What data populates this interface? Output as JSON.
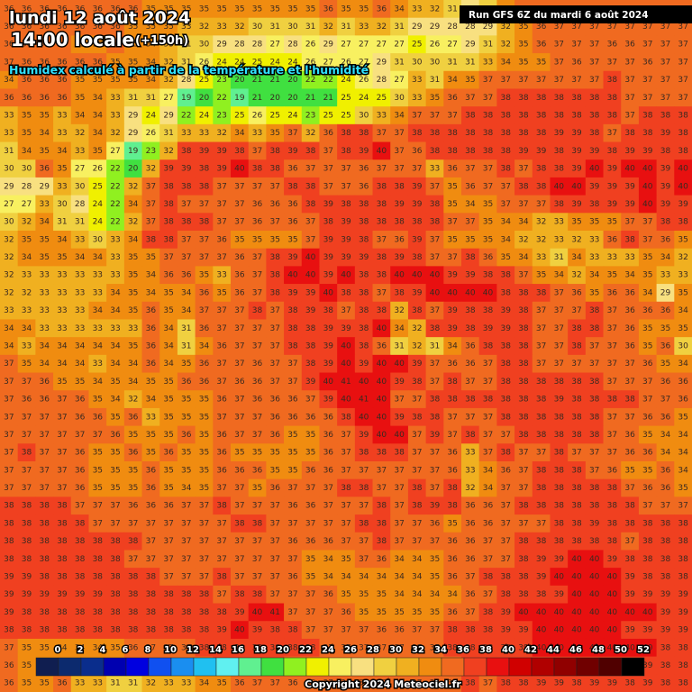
{
  "header": {
    "date": "lundi 12 août 2024",
    "time": "14:00 locale",
    "lead": "(+150h)",
    "subtitle": "Humidex calculé à partir de la température et l'humidité"
  },
  "run": "Run GFS 6Z du mardi 6 août 2024",
  "field": {
    "rows": [
      [
        36,
        36,
        36,
        36,
        36,
        36,
        36,
        36,
        35,
        35,
        35,
        35,
        35,
        35,
        35,
        35,
        35,
        35,
        36,
        35,
        35,
        36,
        34,
        33,
        32,
        31,
        29,
        31,
        34,
        36,
        36,
        36,
        36,
        37,
        37,
        37,
        37,
        37,
        37
      ],
      [
        36,
        36,
        36,
        36,
        36,
        36,
        36,
        35,
        35,
        35,
        33,
        32,
        33,
        32,
        30,
        31,
        30,
        31,
        32,
        31,
        33,
        32,
        31,
        29,
        29,
        28,
        28,
        29,
        32,
        35,
        36,
        37,
        37,
        37,
        37,
        37,
        37,
        37,
        37
      ],
      [
        36,
        36,
        36,
        36,
        35,
        35,
        36,
        35,
        34,
        33,
        31,
        30,
        29,
        28,
        28,
        27,
        28,
        26,
        29,
        27,
        27,
        27,
        27,
        25,
        26,
        27,
        29,
        31,
        32,
        35,
        36,
        37,
        37,
        37,
        36,
        36,
        37,
        37,
        37
      ],
      [
        37,
        36,
        36,
        36,
        36,
        36,
        35,
        35,
        34,
        32,
        31,
        26,
        24,
        24,
        25,
        24,
        24,
        26,
        27,
        26,
        27,
        29,
        31,
        30,
        30,
        31,
        31,
        33,
        34,
        35,
        35,
        37,
        36,
        37,
        37,
        37,
        36,
        37,
        37
      ],
      [
        34,
        36,
        36,
        36,
        35,
        35,
        35,
        35,
        34,
        32,
        28,
        25,
        23,
        20,
        21,
        21,
        20,
        22,
        22,
        24,
        26,
        28,
        27,
        33,
        31,
        34,
        35,
        37,
        37,
        37,
        37,
        37,
        37,
        37,
        38,
        37,
        37,
        37,
        37
      ],
      [
        36,
        36,
        36,
        36,
        35,
        34,
        33,
        31,
        31,
        27,
        19,
        20,
        22,
        19,
        21,
        20,
        20,
        21,
        21,
        25,
        24,
        25,
        30,
        33,
        35,
        36,
        37,
        37,
        38,
        38,
        38,
        38,
        38,
        38,
        38,
        37,
        37,
        37,
        37
      ],
      [
        33,
        35,
        35,
        33,
        34,
        34,
        33,
        29,
        24,
        29,
        22,
        24,
        23,
        25,
        26,
        25,
        24,
        23,
        25,
        25,
        30,
        33,
        34,
        37,
        37,
        37,
        38,
        38,
        38,
        38,
        38,
        38,
        38,
        38,
        38,
        37,
        38,
        38,
        38
      ],
      [
        33,
        35,
        34,
        33,
        32,
        34,
        32,
        29,
        26,
        31,
        33,
        33,
        32,
        34,
        33,
        35,
        37,
        32,
        36,
        38,
        38,
        37,
        37,
        38,
        38,
        38,
        38,
        38,
        38,
        38,
        38,
        39,
        39,
        38,
        37,
        38,
        38,
        39,
        38
      ],
      [
        31,
        34,
        35,
        34,
        33,
        35,
        27,
        19,
        23,
        32,
        38,
        39,
        39,
        38,
        37,
        38,
        39,
        38,
        37,
        38,
        39,
        40,
        37,
        36,
        38,
        38,
        38,
        38,
        38,
        39,
        39,
        38,
        39,
        39,
        38,
        39,
        39,
        38,
        38
      ],
      [
        30,
        30,
        36,
        35,
        27,
        26,
        22,
        20,
        32,
        39,
        39,
        38,
        39,
        40,
        38,
        38,
        36,
        37,
        37,
        37,
        36,
        37,
        37,
        37,
        33,
        36,
        37,
        37,
        38,
        37,
        38,
        38,
        39,
        40,
        39,
        40,
        40,
        39,
        40
      ],
      [
        29,
        28,
        29,
        33,
        30,
        25,
        22,
        32,
        37,
        38,
        38,
        38,
        37,
        37,
        37,
        37,
        38,
        38,
        37,
        37,
        36,
        38,
        38,
        39,
        37,
        35,
        36,
        37,
        37,
        38,
        38,
        40,
        40,
        39,
        39,
        39,
        40,
        39,
        40
      ],
      [
        27,
        27,
        33,
        30,
        28,
        24,
        22,
        34,
        37,
        38,
        37,
        37,
        37,
        37,
        36,
        36,
        36,
        38,
        39,
        38,
        38,
        38,
        39,
        39,
        38,
        35,
        34,
        35,
        37,
        37,
        37,
        38,
        39,
        38,
        39,
        39,
        40,
        39,
        39
      ],
      [
        30,
        32,
        34,
        31,
        31,
        24,
        22,
        32,
        37,
        38,
        38,
        38,
        37,
        37,
        36,
        37,
        36,
        37,
        38,
        39,
        38,
        38,
        38,
        38,
        38,
        37,
        37,
        35,
        34,
        34,
        32,
        33,
        35,
        35,
        35,
        37,
        37,
        38,
        38
      ],
      [
        32,
        35,
        35,
        34,
        33,
        30,
        33,
        34,
        38,
        38,
        37,
        37,
        36,
        35,
        35,
        35,
        35,
        37,
        39,
        39,
        38,
        37,
        36,
        39,
        37,
        35,
        35,
        35,
        34,
        32,
        32,
        33,
        32,
        33,
        36,
        38,
        37,
        36,
        35
      ],
      [
        32,
        34,
        35,
        35,
        34,
        34,
        33,
        35,
        35,
        37,
        37,
        37,
        37,
        36,
        37,
        38,
        39,
        40,
        39,
        39,
        39,
        38,
        39,
        38,
        37,
        37,
        38,
        36,
        35,
        34,
        33,
        31,
        34,
        33,
        33,
        33,
        35,
        34,
        32
      ],
      [
        32,
        33,
        33,
        33,
        33,
        33,
        33,
        35,
        34,
        36,
        36,
        35,
        33,
        36,
        37,
        38,
        40,
        40,
        39,
        40,
        38,
        38,
        40,
        40,
        40,
        39,
        39,
        38,
        38,
        37,
        35,
        34,
        32,
        34,
        35,
        34,
        35,
        33,
        33
      ],
      [
        32,
        32,
        33,
        33,
        33,
        33,
        34,
        35,
        34,
        35,
        34,
        36,
        35,
        36,
        37,
        38,
        39,
        39,
        40,
        38,
        38,
        37,
        38,
        39,
        40,
        40,
        40,
        40,
        38,
        38,
        38,
        37,
        36,
        35,
        36,
        36,
        34,
        29,
        35
      ],
      [
        33,
        33,
        33,
        33,
        33,
        34,
        34,
        35,
        36,
        35,
        34,
        37,
        37,
        37,
        38,
        37,
        38,
        39,
        38,
        37,
        38,
        38,
        32,
        38,
        37,
        39,
        38,
        38,
        39,
        38,
        37,
        37,
        37,
        38,
        37,
        36,
        36,
        36,
        34
      ],
      [
        34,
        34,
        33,
        33,
        33,
        33,
        33,
        33,
        36,
        34,
        31,
        36,
        37,
        37,
        37,
        37,
        38,
        38,
        39,
        39,
        38,
        40,
        34,
        32,
        38,
        39,
        38,
        39,
        39,
        38,
        37,
        37,
        38,
        38,
        37,
        36,
        35,
        35,
        35
      ],
      [
        34,
        33,
        34,
        34,
        34,
        34,
        34,
        35,
        36,
        34,
        31,
        34,
        36,
        37,
        37,
        37,
        38,
        38,
        39,
        40,
        38,
        36,
        31,
        32,
        31,
        34,
        36,
        38,
        38,
        38,
        37,
        37,
        38,
        37,
        37,
        36,
        35,
        36,
        30
      ],
      [
        37,
        35,
        34,
        34,
        34,
        33,
        34,
        34,
        36,
        34,
        35,
        36,
        37,
        37,
        36,
        37,
        37,
        38,
        39,
        40,
        39,
        40,
        40,
        39,
        37,
        36,
        36,
        37,
        38,
        38,
        37,
        37,
        37,
        37,
        37,
        37,
        36,
        35,
        34
      ],
      [
        37,
        37,
        36,
        35,
        35,
        34,
        35,
        34,
        35,
        35,
        36,
        36,
        37,
        36,
        36,
        37,
        37,
        39,
        40,
        41,
        40,
        40,
        39,
        38,
        37,
        38,
        37,
        37,
        38,
        38,
        38,
        38,
        38,
        38,
        37,
        37,
        37,
        36,
        36
      ],
      [
        37,
        36,
        36,
        37,
        36,
        35,
        34,
        32,
        34,
        35,
        35,
        35,
        36,
        37,
        36,
        36,
        36,
        37,
        39,
        40,
        41,
        40,
        37,
        37,
        38,
        38,
        38,
        38,
        38,
        38,
        38,
        39,
        38,
        38,
        38,
        38,
        37,
        37,
        36
      ],
      [
        37,
        37,
        37,
        37,
        36,
        36,
        35,
        36,
        33,
        35,
        35,
        35,
        37,
        37,
        37,
        36,
        36,
        36,
        36,
        38,
        40,
        40,
        39,
        38,
        38,
        37,
        37,
        37,
        38,
        38,
        38,
        38,
        38,
        38,
        37,
        37,
        36,
        36,
        35
      ],
      [
        37,
        37,
        37,
        37,
        37,
        37,
        36,
        35,
        35,
        35,
        36,
        35,
        36,
        37,
        37,
        36,
        35,
        35,
        36,
        37,
        39,
        40,
        40,
        37,
        39,
        37,
        38,
        37,
        37,
        38,
        38,
        38,
        38,
        38,
        37,
        36,
        35,
        34,
        34
      ],
      [
        37,
        38,
        37,
        37,
        36,
        35,
        35,
        36,
        35,
        36,
        35,
        35,
        36,
        35,
        35,
        35,
        35,
        35,
        36,
        37,
        38,
        38,
        38,
        37,
        37,
        36,
        33,
        37,
        38,
        37,
        37,
        38,
        37,
        37,
        37,
        36,
        36,
        34,
        34
      ],
      [
        37,
        37,
        37,
        37,
        36,
        35,
        35,
        35,
        36,
        35,
        35,
        35,
        36,
        36,
        36,
        35,
        35,
        36,
        36,
        37,
        37,
        37,
        37,
        37,
        37,
        36,
        33,
        34,
        36,
        37,
        38,
        38,
        38,
        37,
        36,
        35,
        35,
        36,
        34
      ],
      [
        37,
        37,
        37,
        37,
        36,
        35,
        35,
        35,
        36,
        35,
        34,
        35,
        37,
        37,
        35,
        36,
        37,
        37,
        37,
        38,
        38,
        37,
        37,
        38,
        37,
        38,
        32,
        34,
        37,
        37,
        38,
        38,
        38,
        38,
        38,
        37,
        36,
        36,
        35
      ],
      [
        38,
        38,
        38,
        38,
        37,
        37,
        37,
        36,
        36,
        36,
        37,
        37,
        38,
        37,
        37,
        37,
        36,
        36,
        37,
        37,
        37,
        38,
        37,
        38,
        39,
        38,
        36,
        36,
        37,
        38,
        38,
        38,
        38,
        38,
        38,
        38,
        37,
        37,
        37
      ],
      [
        38,
        38,
        38,
        38,
        38,
        37,
        37,
        37,
        37,
        37,
        37,
        37,
        37,
        38,
        38,
        37,
        37,
        37,
        37,
        37,
        38,
        38,
        37,
        37,
        36,
        35,
        36,
        36,
        37,
        37,
        37,
        38,
        38,
        39,
        38,
        38,
        38,
        38,
        38
      ],
      [
        38,
        38,
        38,
        38,
        38,
        38,
        38,
        38,
        37,
        37,
        37,
        37,
        37,
        37,
        37,
        37,
        36,
        36,
        36,
        37,
        37,
        38,
        37,
        37,
        37,
        36,
        36,
        37,
        37,
        38,
        38,
        38,
        38,
        38,
        38,
        37,
        38,
        38,
        38
      ],
      [
        38,
        38,
        38,
        38,
        38,
        38,
        38,
        37,
        37,
        37,
        37,
        37,
        37,
        37,
        37,
        37,
        37,
        35,
        34,
        35,
        37,
        36,
        34,
        34,
        35,
        36,
        36,
        37,
        37,
        38,
        39,
        39,
        40,
        40,
        39,
        38,
        38,
        38,
        38
      ],
      [
        39,
        39,
        38,
        38,
        38,
        38,
        38,
        38,
        38,
        37,
        37,
        37,
        38,
        37,
        37,
        37,
        36,
        35,
        34,
        34,
        34,
        34,
        34,
        34,
        35,
        36,
        37,
        38,
        38,
        38,
        39,
        40,
        40,
        40,
        40,
        39,
        38,
        38,
        38
      ],
      [
        39,
        39,
        39,
        39,
        39,
        39,
        38,
        38,
        38,
        38,
        38,
        38,
        37,
        38,
        38,
        37,
        37,
        37,
        36,
        35,
        35,
        35,
        34,
        34,
        34,
        34,
        36,
        37,
        38,
        38,
        38,
        39,
        40,
        40,
        40,
        39,
        39,
        39,
        39
      ],
      [
        39,
        38,
        38,
        38,
        38,
        38,
        38,
        38,
        38,
        38,
        38,
        38,
        38,
        39,
        40,
        41,
        37,
        37,
        37,
        36,
        35,
        35,
        35,
        35,
        35,
        36,
        37,
        38,
        39,
        40,
        40,
        40,
        40,
        40,
        40,
        40,
        40,
        39,
        39
      ],
      [
        38,
        38,
        38,
        38,
        38,
        38,
        38,
        38,
        38,
        38,
        38,
        38,
        39,
        40,
        39,
        38,
        38,
        37,
        37,
        37,
        37,
        36,
        36,
        37,
        37,
        38,
        38,
        38,
        39,
        39,
        40,
        40,
        40,
        40,
        40,
        39,
        39,
        39,
        39
      ],
      [
        37,
        35,
        35,
        34,
        34,
        34,
        35,
        36,
        37,
        37,
        37,
        38,
        38,
        38,
        38,
        38,
        38,
        38,
        37,
        37,
        37,
        37,
        37,
        37,
        37,
        38,
        38,
        38,
        38,
        39,
        40,
        40,
        40,
        40,
        40,
        40,
        40,
        38,
        38
      ],
      [
        36,
        35,
        35,
        34,
        35,
        35,
        35,
        36,
        36,
        37,
        37,
        37,
        38,
        38,
        38,
        38,
        37,
        37,
        37,
        37,
        37,
        37,
        37,
        37,
        37,
        37,
        38,
        38,
        38,
        38,
        39,
        39,
        39,
        39,
        39,
        39,
        39,
        38,
        38
      ],
      [
        36,
        35,
        35,
        36,
        33,
        33,
        31,
        31,
        32,
        33,
        33,
        34,
        35,
        36,
        37,
        37,
        36,
        36,
        37,
        37,
        37,
        37,
        37,
        37,
        37,
        37,
        38,
        37,
        38,
        38,
        39,
        39,
        38,
        39,
        39,
        38,
        39,
        38,
        38
      ]
    ]
  },
  "scale": {
    "values": [
      0,
      2,
      4,
      6,
      8,
      10,
      12,
      14,
      16,
      18,
      20,
      22,
      24,
      26,
      28,
      30,
      32,
      34,
      36,
      38,
      40,
      42,
      44,
      46,
      48,
      50,
      52
    ],
    "colors": [
      "#101e50",
      "#0c2a6e",
      "#0a2d8c",
      "#0000b0",
      "#0000e0",
      "#1050f0",
      "#1a8ef0",
      "#20c0f0",
      "#60f0f0",
      "#60f090",
      "#40e040",
      "#90f020",
      "#f0f000",
      "#f8f060",
      "#f8e080",
      "#f0d040",
      "#f0b020",
      "#f08c10",
      "#f06a20",
      "#f04020",
      "#e81010",
      "#d00000",
      "#b00000",
      "#900000",
      "#700000",
      "#500000",
      "#000000"
    ]
  },
  "copyright": "Copyright 2024 Meteociel.fr"
}
